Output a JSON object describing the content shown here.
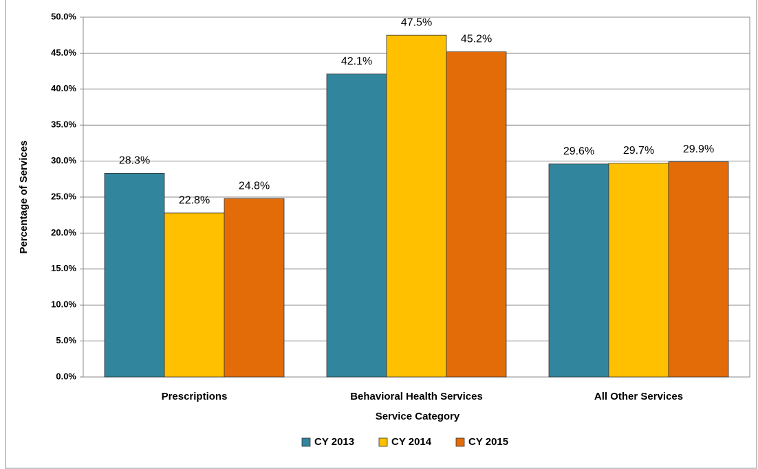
{
  "chart_data": {
    "type": "bar",
    "categories": [
      "Prescriptions",
      "Behavioral Health Services",
      "All Other Services"
    ],
    "series": [
      {
        "name": "CY 2013",
        "color": "#31859c",
        "values": [
          28.3,
          42.1,
          29.6
        ],
        "value_labels": [
          "28.3%",
          "42.1%",
          "29.6%"
        ]
      },
      {
        "name": "CY 2014",
        "color": "#ffc000",
        "values": [
          22.8,
          47.5,
          29.7
        ],
        "value_labels": [
          "22.8%",
          "47.5%",
          "29.7%"
        ]
      },
      {
        "name": "CY 2015",
        "color": "#e36c09",
        "values": [
          24.8,
          45.2,
          29.9
        ],
        "value_labels": [
          "24.8%",
          "45.2%",
          "29.9%"
        ]
      }
    ],
    "xlabel": "Service Category",
    "ylabel": "Percentage of Services",
    "ylim": [
      0,
      50
    ],
    "yticks": [
      {
        "value": 0,
        "label": "0.0%"
      },
      {
        "value": 5,
        "label": "5.0%"
      },
      {
        "value": 10,
        "label": "10.0%"
      },
      {
        "value": 15,
        "label": "15.0%"
      },
      {
        "value": 20,
        "label": "20.0%"
      },
      {
        "value": 25,
        "label": "25.0%"
      },
      {
        "value": 30,
        "label": "30.0%"
      },
      {
        "value": 35,
        "label": "35.0%"
      },
      {
        "value": 40,
        "label": "40.0%"
      },
      {
        "value": 45,
        "label": "45.0%"
      },
      {
        "value": 50,
        "label": "50.0%"
      }
    ],
    "grid": true,
    "legend": "bottom"
  }
}
